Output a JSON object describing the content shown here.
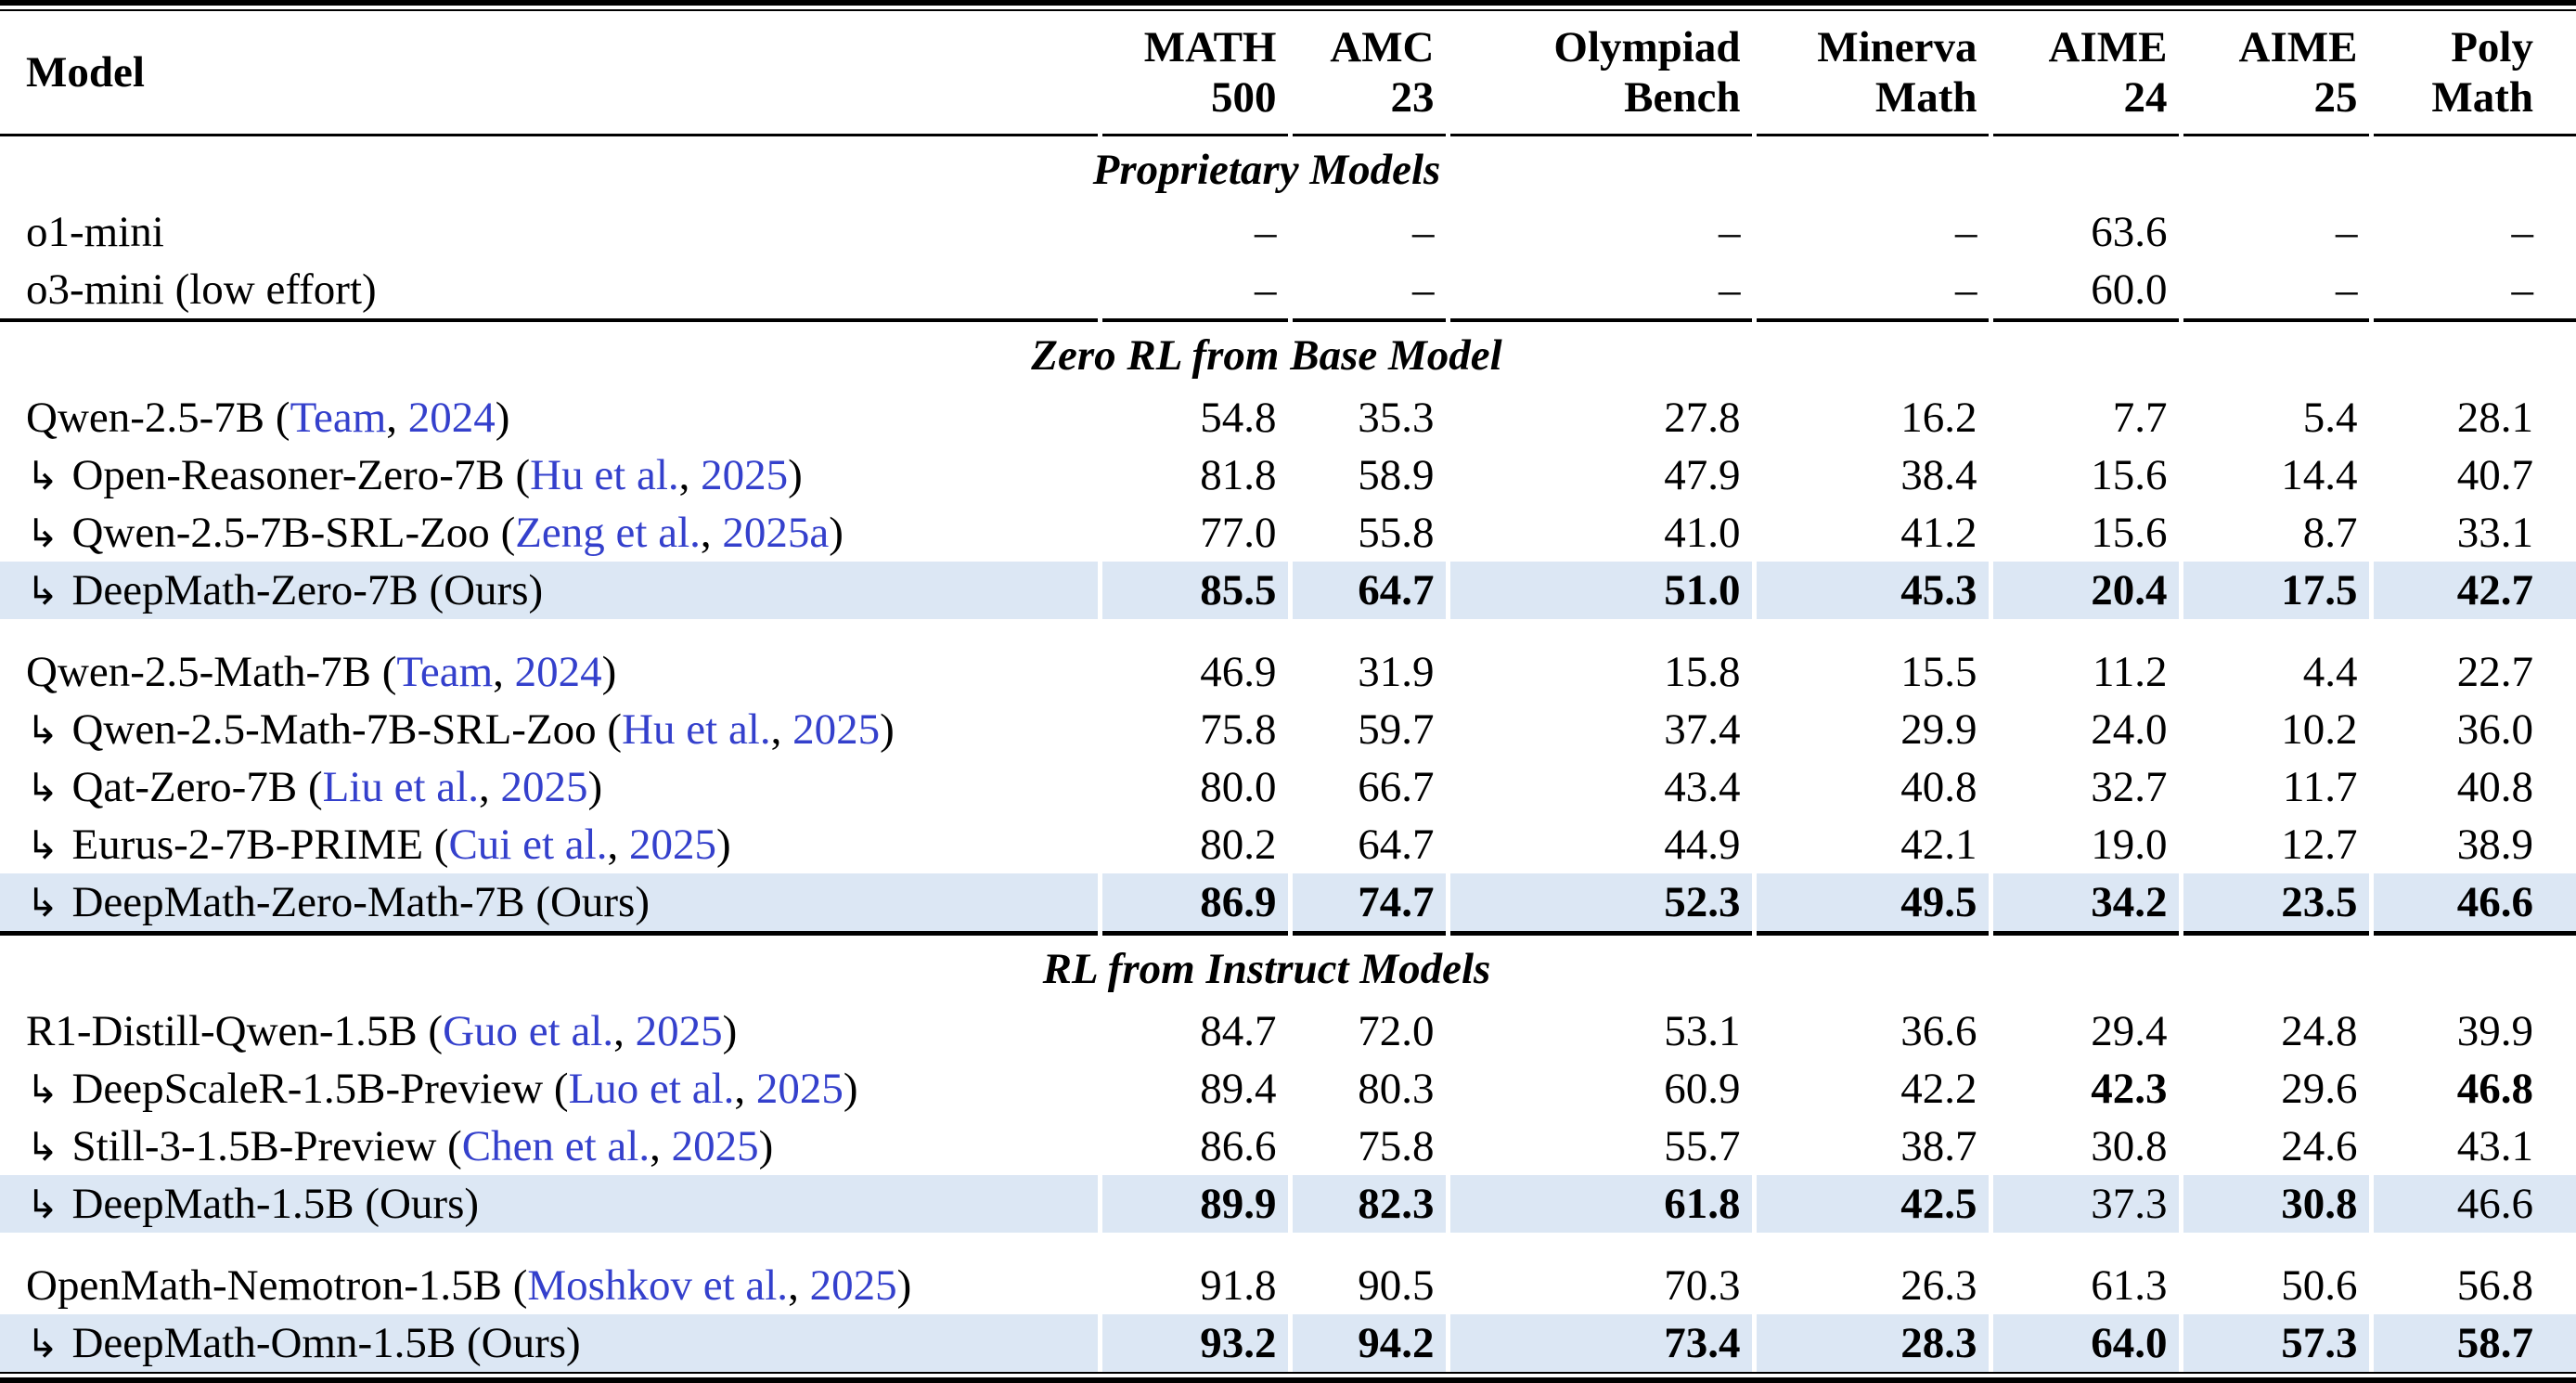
{
  "colors": {
    "citation_link": "#3440cc",
    "ours_row_highlight": "#dce7f4"
  },
  "table": {
    "header": {
      "model_label": "Model",
      "benchmarks": [
        {
          "line1": "MATH",
          "line2": "500"
        },
        {
          "line1": "AMC",
          "line2": "23"
        },
        {
          "line1": "Olympiad",
          "line2": "Bench"
        },
        {
          "line1": "Minerva",
          "line2": "Math"
        },
        {
          "line1": "AIME",
          "line2": "24"
        },
        {
          "line1": "AIME",
          "line2": "25"
        },
        {
          "line1": "Poly",
          "line2": "Math"
        }
      ]
    },
    "indent_marker": "↳",
    "missing_value": "–",
    "ours_suffix": "(Ours)",
    "sections": [
      {
        "title": "Proprietary Models",
        "groups": [
          {
            "rows": [
              {
                "name": "o1-mini",
                "indent": false,
                "cite": null,
                "ours": false,
                "highlight": false,
                "values": [
                  "–",
                  "–",
                  "–",
                  "–",
                  "63.6",
                  "–",
                  "–"
                ],
                "bold": [
                  false,
                  false,
                  false,
                  false,
                  false,
                  false,
                  false
                ]
              },
              {
                "name": "o3-mini (low effort)",
                "indent": false,
                "cite": null,
                "ours": false,
                "highlight": false,
                "values": [
                  "–",
                  "–",
                  "–",
                  "–",
                  "60.0",
                  "–",
                  "–"
                ],
                "bold": [
                  false,
                  false,
                  false,
                  false,
                  false,
                  false,
                  false
                ]
              }
            ]
          }
        ]
      },
      {
        "title": "Zero RL from Base Model",
        "groups": [
          {
            "rows": [
              {
                "name": "Qwen-2.5-7B",
                "indent": false,
                "cite": {
                  "author": "Team",
                  "year": "2024"
                },
                "ours": false,
                "highlight": false,
                "values": [
                  "54.8",
                  "35.3",
                  "27.8",
                  "16.2",
                  "7.7",
                  "5.4",
                  "28.1"
                ],
                "bold": [
                  false,
                  false,
                  false,
                  false,
                  false,
                  false,
                  false
                ]
              },
              {
                "name": "Open-Reasoner-Zero-7B",
                "indent": true,
                "cite": {
                  "author": "Hu et al.",
                  "year": "2025"
                },
                "ours": false,
                "highlight": false,
                "values": [
                  "81.8",
                  "58.9",
                  "47.9",
                  "38.4",
                  "15.6",
                  "14.4",
                  "40.7"
                ],
                "bold": [
                  false,
                  false,
                  false,
                  false,
                  false,
                  false,
                  false
                ]
              },
              {
                "name": "Qwen-2.5-7B-SRL-Zoo",
                "indent": true,
                "cite": {
                  "author": "Zeng et al.",
                  "year": "2025a"
                },
                "ours": false,
                "highlight": false,
                "values": [
                  "77.0",
                  "55.8",
                  "41.0",
                  "41.2",
                  "15.6",
                  "8.7",
                  "33.1"
                ],
                "bold": [
                  false,
                  false,
                  false,
                  false,
                  false,
                  false,
                  false
                ]
              },
              {
                "name": "DeepMath-Zero-7B",
                "indent": true,
                "cite": null,
                "ours": true,
                "highlight": true,
                "values": [
                  "85.5",
                  "64.7",
                  "51.0",
                  "45.3",
                  "20.4",
                  "17.5",
                  "42.7"
                ],
                "bold": [
                  true,
                  true,
                  true,
                  true,
                  true,
                  true,
                  true
                ]
              }
            ]
          },
          {
            "rows": [
              {
                "name": "Qwen-2.5-Math-7B",
                "indent": false,
                "cite": {
                  "author": "Team",
                  "year": "2024"
                },
                "ours": false,
                "highlight": false,
                "values": [
                  "46.9",
                  "31.9",
                  "15.8",
                  "15.5",
                  "11.2",
                  "4.4",
                  "22.7"
                ],
                "bold": [
                  false,
                  false,
                  false,
                  false,
                  false,
                  false,
                  false
                ]
              },
              {
                "name": "Qwen-2.5-Math-7B-SRL-Zoo",
                "indent": true,
                "cite": {
                  "author": "Hu et al.",
                  "year": "2025"
                },
                "ours": false,
                "highlight": false,
                "values": [
                  "75.8",
                  "59.7",
                  "37.4",
                  "29.9",
                  "24.0",
                  "10.2",
                  "36.0"
                ],
                "bold": [
                  false,
                  false,
                  false,
                  false,
                  false,
                  false,
                  false
                ]
              },
              {
                "name": "Qat-Zero-7B",
                "indent": true,
                "cite": {
                  "author": "Liu et al.",
                  "year": "2025"
                },
                "ours": false,
                "highlight": false,
                "values": [
                  "80.0",
                  "66.7",
                  "43.4",
                  "40.8",
                  "32.7",
                  "11.7",
                  "40.8"
                ],
                "bold": [
                  false,
                  false,
                  false,
                  false,
                  false,
                  false,
                  false
                ]
              },
              {
                "name": "Eurus-2-7B-PRIME",
                "indent": true,
                "cite": {
                  "author": "Cui et al.",
                  "year": "2025"
                },
                "ours": false,
                "highlight": false,
                "values": [
                  "80.2",
                  "64.7",
                  "44.9",
                  "42.1",
                  "19.0",
                  "12.7",
                  "38.9"
                ],
                "bold": [
                  false,
                  false,
                  false,
                  false,
                  false,
                  false,
                  false
                ]
              },
              {
                "name": "DeepMath-Zero-Math-7B",
                "indent": true,
                "cite": null,
                "ours": true,
                "highlight": true,
                "values": [
                  "86.9",
                  "74.7",
                  "52.3",
                  "49.5",
                  "34.2",
                  "23.5",
                  "46.6"
                ],
                "bold": [
                  true,
                  true,
                  true,
                  true,
                  true,
                  true,
                  true
                ]
              }
            ]
          }
        ]
      },
      {
        "title": "RL from Instruct Models",
        "groups": [
          {
            "rows": [
              {
                "name": "R1-Distill-Qwen-1.5B",
                "indent": false,
                "cite": {
                  "author": "Guo et al.",
                  "year": "2025"
                },
                "ours": false,
                "highlight": false,
                "values": [
                  "84.7",
                  "72.0",
                  "53.1",
                  "36.6",
                  "29.4",
                  "24.8",
                  "39.9"
                ],
                "bold": [
                  false,
                  false,
                  false,
                  false,
                  false,
                  false,
                  false
                ]
              },
              {
                "name": "DeepScaleR-1.5B-Preview",
                "indent": true,
                "cite": {
                  "author": "Luo et al.",
                  "year": "2025"
                },
                "ours": false,
                "highlight": false,
                "values": [
                  "89.4",
                  "80.3",
                  "60.9",
                  "42.2",
                  "42.3",
                  "29.6",
                  "46.8"
                ],
                "bold": [
                  false,
                  false,
                  false,
                  false,
                  true,
                  false,
                  true
                ]
              },
              {
                "name": "Still-3-1.5B-Preview",
                "indent": true,
                "cite": {
                  "author": "Chen et al.",
                  "year": "2025"
                },
                "ours": false,
                "highlight": false,
                "values": [
                  "86.6",
                  "75.8",
                  "55.7",
                  "38.7",
                  "30.8",
                  "24.6",
                  "43.1"
                ],
                "bold": [
                  false,
                  false,
                  false,
                  false,
                  false,
                  false,
                  false
                ]
              },
              {
                "name": "DeepMath-1.5B",
                "indent": true,
                "cite": null,
                "ours": true,
                "highlight": true,
                "values": [
                  "89.9",
                  "82.3",
                  "61.8",
                  "42.5",
                  "37.3",
                  "30.8",
                  "46.6"
                ],
                "bold": [
                  true,
                  true,
                  true,
                  true,
                  false,
                  true,
                  false
                ]
              }
            ]
          },
          {
            "rows": [
              {
                "name": "OpenMath-Nemotron-1.5B",
                "indent": false,
                "cite": {
                  "author": "Moshkov et al.",
                  "year": "2025"
                },
                "ours": false,
                "highlight": false,
                "values": [
                  "91.8",
                  "90.5",
                  "70.3",
                  "26.3",
                  "61.3",
                  "50.6",
                  "56.8"
                ],
                "bold": [
                  false,
                  false,
                  false,
                  false,
                  false,
                  false,
                  false
                ]
              },
              {
                "name": "DeepMath-Omn-1.5B",
                "indent": true,
                "cite": null,
                "ours": true,
                "highlight": true,
                "values": [
                  "93.2",
                  "94.2",
                  "73.4",
                  "28.3",
                  "64.0",
                  "57.3",
                  "58.7"
                ],
                "bold": [
                  true,
                  true,
                  true,
                  true,
                  true,
                  true,
                  true
                ]
              }
            ]
          }
        ]
      }
    ]
  }
}
